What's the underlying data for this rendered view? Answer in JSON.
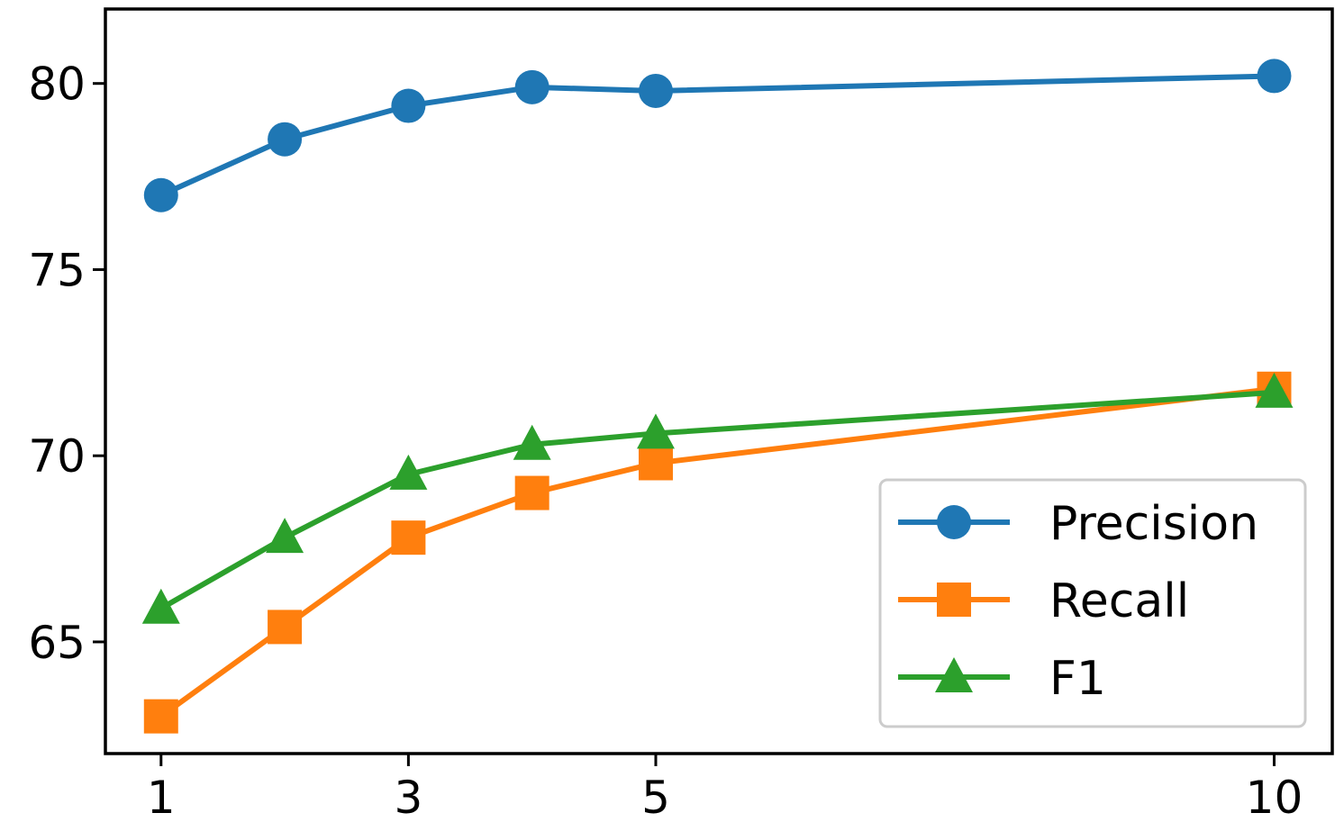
{
  "chart_data": {
    "type": "line",
    "title": "",
    "xlabel": "",
    "ylabel": "",
    "x": [
      1,
      2,
      3,
      4,
      5,
      10
    ],
    "xticks": [
      "1",
      "3",
      "5",
      "10"
    ],
    "xtick_values": [
      1,
      3,
      5,
      10
    ],
    "yticks": [
      "65",
      "70",
      "75",
      "80"
    ],
    "ytick_values": [
      65,
      70,
      75,
      80
    ],
    "xlim": [
      0.55,
      10.47
    ],
    "ylim": [
      62.0,
      82.0
    ],
    "grid": false,
    "legend_position": "lower-right",
    "series": [
      {
        "name": "Precision",
        "color": "#1f77b4",
        "marker": "circle",
        "values": [
          77.0,
          78.5,
          79.4,
          79.9,
          79.8,
          80.2
        ]
      },
      {
        "name": "Recall",
        "color": "#ff7f0e",
        "marker": "square",
        "values": [
          63.0,
          65.4,
          67.8,
          69.0,
          69.8,
          71.8
        ]
      },
      {
        "name": "F1",
        "color": "#2ca02c",
        "marker": "triangle",
        "values": [
          65.9,
          67.8,
          69.5,
          70.3,
          70.6,
          71.7
        ]
      }
    ]
  }
}
